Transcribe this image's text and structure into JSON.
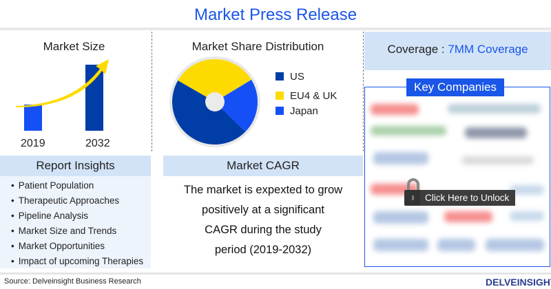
{
  "header": {
    "title": "Market Press Release"
  },
  "market_size": {
    "title": "Market Size",
    "years": [
      "2019",
      "2032"
    ],
    "bar_colors": [
      "#1450f5",
      "#003da6"
    ]
  },
  "market_share": {
    "title": "Market Share Distribution",
    "legend": [
      {
        "label": "US",
        "color": "#003da6",
        "share": 46
      },
      {
        "label": "EU4 & UK",
        "color": "#fedb00",
        "share": 33
      },
      {
        "label": "Japan",
        "color": "#1450f5",
        "share": 21
      }
    ]
  },
  "coverage": {
    "label": "Coverage :",
    "value": "7MM Coverage"
  },
  "report_insights": {
    "title": "Report Insights",
    "items": [
      "Patient Population",
      "Therapeutic Approaches",
      "Pipeline Analysis",
      "Market Size and Trends",
      "Market Opportunities",
      "Impact of upcoming Therapies"
    ]
  },
  "market_cagr": {
    "title": "Market CAGR",
    "lines": [
      "The market is expexted to grow",
      "positively at a significant",
      "CAGR during the study",
      "period (2019-2032)"
    ]
  },
  "key_companies": {
    "title": "Key Companies",
    "unlock_label": "Click Here to Unlock"
  },
  "footer": {
    "source": "Source: Delveinsight Business Research",
    "logo": "DELVEINSIGHT"
  }
}
